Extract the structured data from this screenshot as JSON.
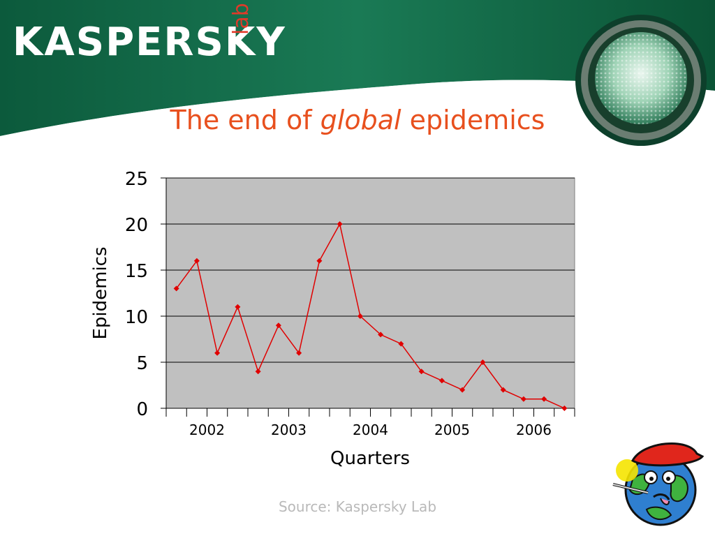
{
  "brand": {
    "logo_text": "KASPERSKY",
    "logo_sub": "lab"
  },
  "slide": {
    "title_pre": "The end of ",
    "title_em": "global",
    "title_post": " epidemics",
    "source": "Source:  Kaspersky Lab"
  },
  "colors": {
    "accent": "#e8501e",
    "series": "#e00000",
    "plot_bg": "#c0c0c0",
    "header_green": "#0f6b4a"
  },
  "icons": {
    "traffic_light": "green-light-icon",
    "mascot": "sick-globe-icon"
  },
  "chart_data": {
    "type": "line",
    "title": "",
    "xlabel": "Quarters",
    "ylabel": "Epidemics",
    "ylim": [
      0,
      25
    ],
    "yticks": [
      "0",
      "5",
      "10",
      "15",
      "20",
      "25"
    ],
    "year_labels": [
      "2002",
      "2003",
      "2004",
      "2005",
      "2006"
    ],
    "grid": true,
    "legend": "none",
    "x": [
      1,
      2,
      3,
      4,
      5,
      6,
      7,
      8,
      9,
      10,
      11,
      12,
      13,
      14,
      15,
      16,
      17,
      18,
      19,
      20
    ],
    "values": [
      13,
      16,
      6,
      11,
      4,
      9,
      6,
      16,
      20,
      10,
      8,
      7,
      4,
      3,
      2,
      5,
      2,
      1,
      1,
      0
    ]
  }
}
